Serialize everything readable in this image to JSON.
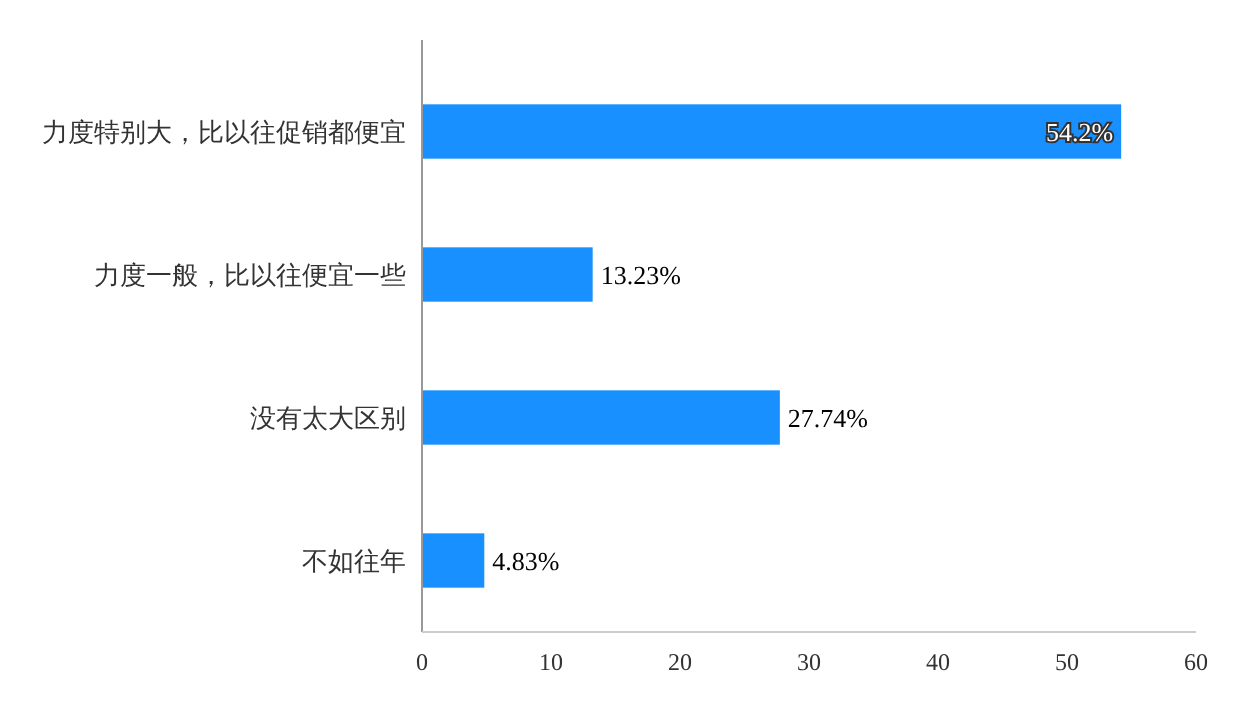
{
  "chart_data": {
    "type": "bar",
    "orientation": "horizontal",
    "categories": [
      "力度特别大，比以往促销都便宜",
      "力度一般，比以往便宜一些",
      "没有太大区别",
      "不如往年"
    ],
    "values": [
      54.2,
      13.23,
      27.74,
      4.83
    ],
    "value_labels": [
      "54.2%",
      "13.23%",
      "27.74%",
      "4.83%"
    ],
    "color": "#1890ff",
    "xlim": [
      0,
      60
    ],
    "xticks": [
      0,
      10,
      20,
      30,
      40,
      50,
      60
    ],
    "grid": false
  }
}
